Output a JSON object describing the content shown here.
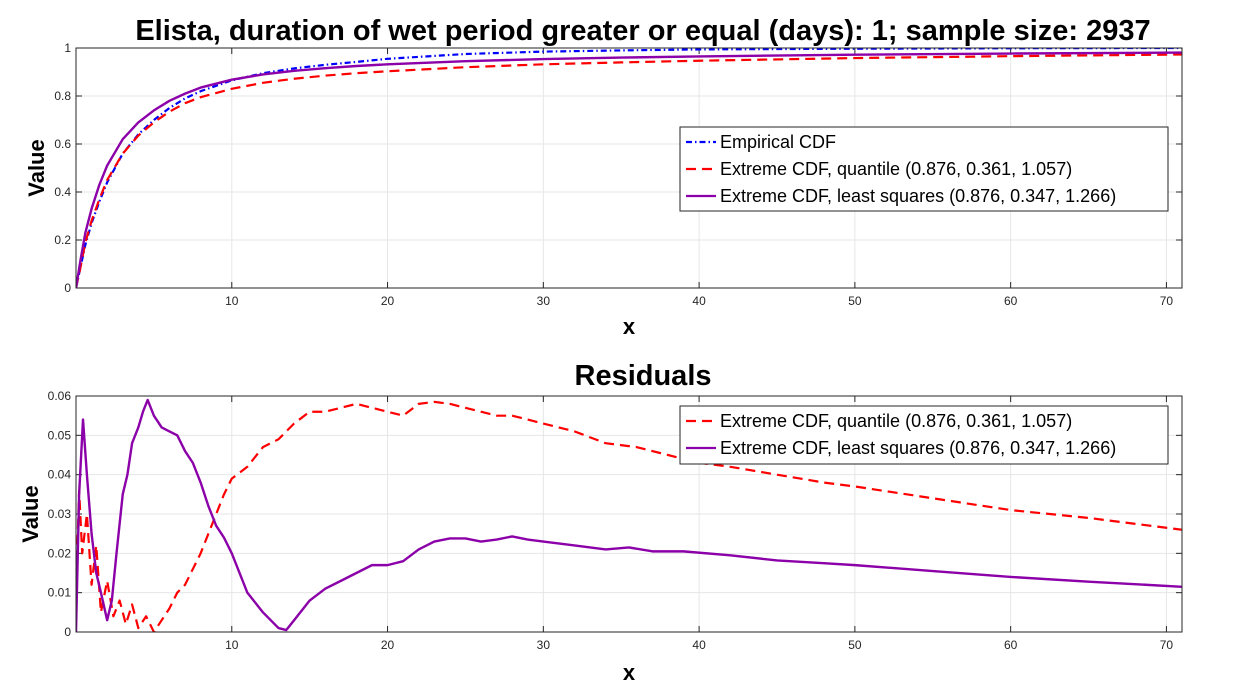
{
  "chart_data": [
    {
      "type": "line",
      "title": "Elista, duration of wet period greater or equal (days): 1; sample size: 2937",
      "xlabel": "x",
      "ylabel": "Value",
      "xlim": [
        0,
        71
      ],
      "ylim": [
        0,
        1
      ],
      "xticks": [
        10,
        20,
        30,
        40,
        50,
        60,
        70
      ],
      "yticks": [
        0,
        0.2,
        0.4,
        0.6,
        0.8,
        1
      ],
      "grid": true,
      "legend_position": "center-right",
      "series": [
        {
          "name": "Empirical CDF",
          "color": "#0000ff",
          "dash": "dash-dot",
          "points": [
            [
              0,
              0
            ],
            [
              0.3,
              0.09
            ],
            [
              0.6,
              0.18
            ],
            [
              1,
              0.27
            ],
            [
              1.5,
              0.36
            ],
            [
              2,
              0.44
            ],
            [
              3,
              0.56
            ],
            [
              4,
              0.64
            ],
            [
              5,
              0.7
            ],
            [
              6,
              0.75
            ],
            [
              7,
              0.79
            ],
            [
              8,
              0.82
            ],
            [
              10,
              0.865
            ],
            [
              12,
              0.895
            ],
            [
              14,
              0.915
            ],
            [
              16,
              0.93
            ],
            [
              18,
              0.942
            ],
            [
              20,
              0.955
            ],
            [
              25,
              0.975
            ],
            [
              30,
              0.985
            ],
            [
              35,
              0.99
            ],
            [
              40,
              0.994
            ],
            [
              50,
              0.997
            ],
            [
              60,
              0.999
            ],
            [
              71,
              1.0
            ]
          ]
        },
        {
          "name": "Extreme CDF, quantile (0.876, 0.361, 1.057)",
          "color": "#ff0000",
          "dash": "dashed",
          "points": [
            [
              0,
              0
            ],
            [
              0.3,
              0.09
            ],
            [
              0.6,
              0.19
            ],
            [
              1,
              0.28
            ],
            [
              1.5,
              0.37
            ],
            [
              2,
              0.45
            ],
            [
              3,
              0.56
            ],
            [
              4,
              0.635
            ],
            [
              5,
              0.69
            ],
            [
              6,
              0.735
            ],
            [
              7,
              0.77
            ],
            [
              8,
              0.795
            ],
            [
              10,
              0.83
            ],
            [
              12,
              0.855
            ],
            [
              14,
              0.872
            ],
            [
              16,
              0.885
            ],
            [
              18,
              0.895
            ],
            [
              20,
              0.903
            ],
            [
              25,
              0.92
            ],
            [
              30,
              0.932
            ],
            [
              35,
              0.94
            ],
            [
              40,
              0.947
            ],
            [
              50,
              0.958
            ],
            [
              60,
              0.966
            ],
            [
              71,
              0.973
            ]
          ]
        },
        {
          "name": "Extreme CDF, least squares (0.876, 0.347, 1.266)",
          "color": "#8b00a8",
          "dash": "solid",
          "points": [
            [
              0,
              0
            ],
            [
              0.3,
              0.12
            ],
            [
              0.6,
              0.23
            ],
            [
              1,
              0.33
            ],
            [
              1.5,
              0.43
            ],
            [
              2,
              0.51
            ],
            [
              3,
              0.62
            ],
            [
              4,
              0.69
            ],
            [
              5,
              0.74
            ],
            [
              6,
              0.78
            ],
            [
              7,
              0.81
            ],
            [
              8,
              0.835
            ],
            [
              10,
              0.868
            ],
            [
              12,
              0.89
            ],
            [
              14,
              0.905
            ],
            [
              16,
              0.916
            ],
            [
              18,
              0.925
            ],
            [
              20,
              0.932
            ],
            [
              25,
              0.945
            ],
            [
              30,
              0.954
            ],
            [
              35,
              0.96
            ],
            [
              40,
              0.965
            ],
            [
              50,
              0.972
            ],
            [
              60,
              0.977
            ],
            [
              71,
              0.981
            ]
          ]
        }
      ]
    },
    {
      "type": "line",
      "title": "Residuals",
      "xlabel": "x",
      "ylabel": "Value",
      "xlim": [
        0,
        71
      ],
      "ylim": [
        0,
        0.06
      ],
      "xticks": [
        10,
        20,
        30,
        40,
        50,
        60,
        70
      ],
      "yticks": [
        0,
        0.01,
        0.02,
        0.03,
        0.04,
        0.05,
        0.06
      ],
      "grid": true,
      "legend_position": "top-right",
      "series": [
        {
          "name": "Extreme CDF, quantile (0.876, 0.361, 1.057)",
          "color": "#ff0000",
          "dash": "dashed",
          "points": [
            [
              0,
              0.01
            ],
            [
              0.2,
              0.036
            ],
            [
              0.4,
              0.02
            ],
            [
              0.7,
              0.03
            ],
            [
              1,
              0.012
            ],
            [
              1.3,
              0.022
            ],
            [
              1.6,
              0.005
            ],
            [
              2,
              0.013
            ],
            [
              2.4,
              0.004
            ],
            [
              2.8,
              0.008
            ],
            [
              3.2,
              0.002
            ],
            [
              3.6,
              0.007
            ],
            [
              4,
              0.001
            ],
            [
              4.5,
              0.004
            ],
            [
              5,
              0.0
            ],
            [
              5.5,
              0.003
            ],
            [
              6,
              0.006
            ],
            [
              6.5,
              0.01
            ],
            [
              7,
              0.012
            ],
            [
              7.5,
              0.016
            ],
            [
              8,
              0.02
            ],
            [
              8.5,
              0.025
            ],
            [
              9,
              0.03
            ],
            [
              9.5,
              0.035
            ],
            [
              10,
              0.039
            ],
            [
              11,
              0.042
            ],
            [
              12,
              0.047
            ],
            [
              13,
              0.049
            ],
            [
              14,
              0.053
            ],
            [
              15,
              0.056
            ],
            [
              16,
              0.056
            ],
            [
              17,
              0.057
            ],
            [
              18,
              0.058
            ],
            [
              19,
              0.057
            ],
            [
              20,
              0.056
            ],
            [
              21,
              0.055
            ],
            [
              22,
              0.058
            ],
            [
              23,
              0.0585
            ],
            [
              24,
              0.058
            ],
            [
              25,
              0.057
            ],
            [
              26,
              0.056
            ],
            [
              27,
              0.055
            ],
            [
              28,
              0.055
            ],
            [
              29,
              0.054
            ],
            [
              30,
              0.053
            ],
            [
              32,
              0.051
            ],
            [
              34,
              0.048
            ],
            [
              36,
              0.047
            ],
            [
              38,
              0.045
            ],
            [
              40,
              0.043
            ],
            [
              42,
              0.042
            ],
            [
              45,
              0.04
            ],
            [
              48,
              0.038
            ],
            [
              50,
              0.037
            ],
            [
              55,
              0.034
            ],
            [
              60,
              0.031
            ],
            [
              65,
              0.029
            ],
            [
              71,
              0.026
            ]
          ]
        },
        {
          "name": "Extreme CDF, least squares (0.876, 0.347, 1.266)",
          "color": "#8b00a8",
          "dash": "solid",
          "points": [
            [
              0,
              0.0
            ],
            [
              0.2,
              0.035
            ],
            [
              0.45,
              0.054
            ],
            [
              0.7,
              0.04
            ],
            [
              1,
              0.025
            ],
            [
              1.3,
              0.015
            ],
            [
              1.6,
              0.01
            ],
            [
              2,
              0.003
            ],
            [
              2.3,
              0.008
            ],
            [
              2.6,
              0.02
            ],
            [
              3,
              0.035
            ],
            [
              3.3,
              0.04
            ],
            [
              3.6,
              0.048
            ],
            [
              4,
              0.052
            ],
            [
              4.3,
              0.056
            ],
            [
              4.6,
              0.059
            ],
            [
              5,
              0.055
            ],
            [
              5.5,
              0.052
            ],
            [
              6,
              0.051
            ],
            [
              6.5,
              0.05
            ],
            [
              7,
              0.046
            ],
            [
              7.5,
              0.043
            ],
            [
              8,
              0.038
            ],
            [
              8.5,
              0.032
            ],
            [
              9,
              0.027
            ],
            [
              9.5,
              0.024
            ],
            [
              10,
              0.02
            ],
            [
              11,
              0.01
            ],
            [
              12,
              0.005
            ],
            [
              13,
              0.001
            ],
            [
              13.5,
              0.0005
            ],
            [
              14,
              0.003
            ],
            [
              15,
              0.008
            ],
            [
              16,
              0.011
            ],
            [
              17,
              0.013
            ],
            [
              18,
              0.015
            ],
            [
              19,
              0.017
            ],
            [
              20,
              0.017
            ],
            [
              21,
              0.018
            ],
            [
              22,
              0.021
            ],
            [
              23,
              0.023
            ],
            [
              24,
              0.0238
            ],
            [
              25,
              0.0238
            ],
            [
              26,
              0.023
            ],
            [
              27,
              0.0235
            ],
            [
              28,
              0.0243
            ],
            [
              29,
              0.0235
            ],
            [
              30,
              0.023
            ],
            [
              32,
              0.022
            ],
            [
              34,
              0.021
            ],
            [
              35.5,
              0.0215
            ],
            [
              37,
              0.0205
            ],
            [
              39,
              0.0205
            ],
            [
              42,
              0.0195
            ],
            [
              45,
              0.0182
            ],
            [
              48,
              0.0175
            ],
            [
              50,
              0.017
            ],
            [
              55,
              0.0155
            ],
            [
              60,
              0.014
            ],
            [
              65,
              0.0128
            ],
            [
              71,
              0.0115
            ]
          ]
        }
      ]
    }
  ]
}
